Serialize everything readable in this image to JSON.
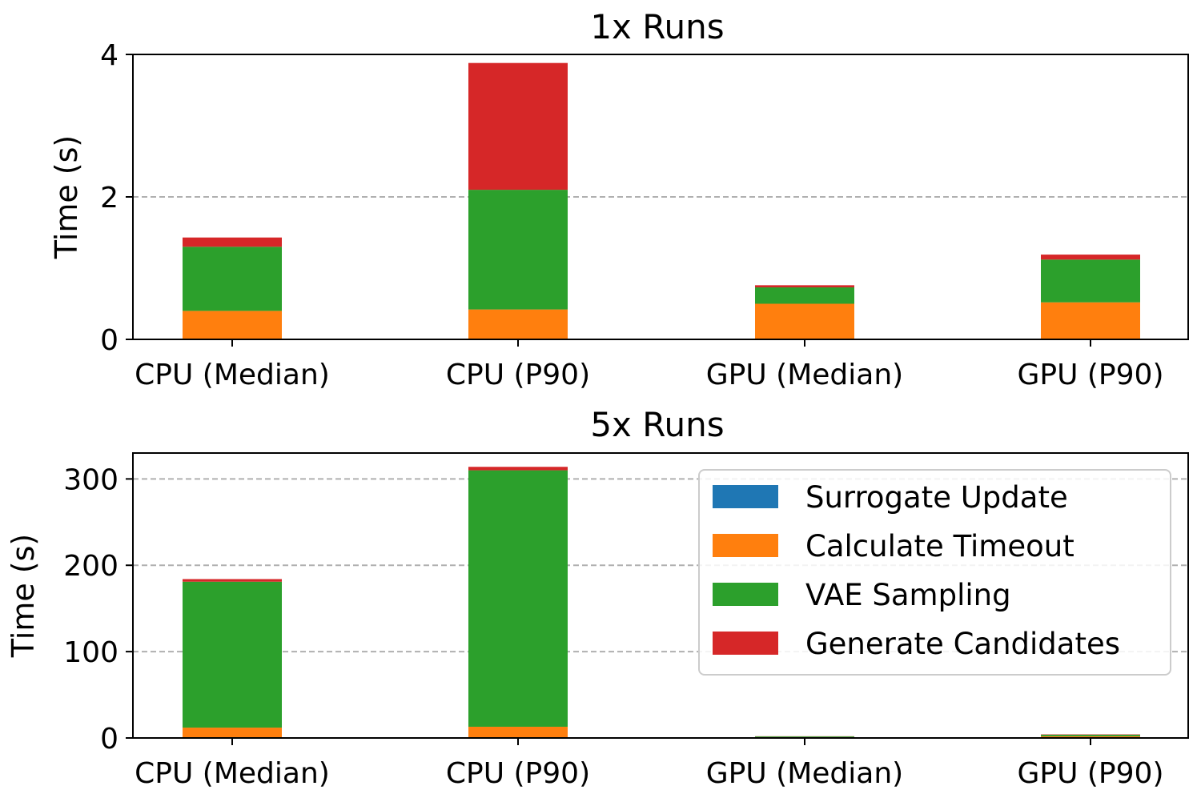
{
  "chart_data": [
    {
      "type": "bar",
      "stacked": true,
      "title": "1x Runs",
      "xlabel": "",
      "ylabel": "Time (s)",
      "categories": [
        "CPU (Median)",
        "CPU (P90)",
        "GPU (Median)",
        "GPU (P90)"
      ],
      "ylim": [
        0,
        4.0
      ],
      "yticks": [
        0,
        2,
        4
      ],
      "grid": "y-dashed",
      "series": [
        {
          "name": "Surrogate Update",
          "color": "#1f77b4",
          "values": [
            0.0,
            0.0,
            0.0,
            0.0
          ]
        },
        {
          "name": "Calculate Timeout",
          "color": "#ff7f0e",
          "values": [
            0.4,
            0.42,
            0.5,
            0.52
          ]
        },
        {
          "name": "VAE Sampling",
          "color": "#2ca02c",
          "values": [
            0.9,
            1.68,
            0.23,
            0.6
          ]
        },
        {
          "name": "Generate Candidates",
          "color": "#d62728",
          "values": [
            0.13,
            1.78,
            0.03,
            0.07
          ]
        }
      ]
    },
    {
      "type": "bar",
      "stacked": true,
      "title": "5x Runs",
      "xlabel": "",
      "ylabel": "Time (s)",
      "categories": [
        "CPU (Median)",
        "CPU (P90)",
        "GPU (Median)",
        "GPU (P90)"
      ],
      "ylim": [
        0,
        330
      ],
      "yticks": [
        0,
        100,
        200,
        300
      ],
      "grid": "y-dashed",
      "legend": "top-right",
      "series": [
        {
          "name": "Surrogate Update",
          "color": "#1f77b4",
          "values": [
            0.0,
            0.0,
            0.0,
            0.0
          ]
        },
        {
          "name": "Calculate Timeout",
          "color": "#ff7f0e",
          "values": [
            12,
            13,
            1.0,
            2.0
          ]
        },
        {
          "name": "VAE Sampling",
          "color": "#2ca02c",
          "values": [
            169,
            297,
            0.8,
            1.8
          ]
        },
        {
          "name": "Generate Candidates",
          "color": "#d62728",
          "values": [
            3,
            4,
            0.2,
            0.4
          ]
        }
      ]
    }
  ]
}
